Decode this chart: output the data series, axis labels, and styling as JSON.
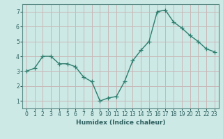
{
  "x": [
    0,
    1,
    2,
    3,
    4,
    5,
    6,
    7,
    8,
    9,
    10,
    11,
    12,
    13,
    14,
    15,
    16,
    17,
    18,
    19,
    20,
    21,
    22,
    23
  ],
  "y": [
    3.0,
    3.2,
    4.0,
    4.0,
    3.5,
    3.5,
    3.3,
    2.6,
    2.3,
    1.0,
    1.2,
    1.3,
    2.3,
    3.7,
    4.4,
    5.0,
    7.0,
    7.1,
    6.3,
    5.9,
    5.4,
    5.0,
    4.5,
    4.3
  ],
  "line_color": "#2e7d6e",
  "marker": "+",
  "marker_size": 4,
  "linewidth": 1.0,
  "bg_color": "#cce9e5",
  "grid_color": "#c8b8b8",
  "xlabel": "Humidex (Indice chaleur)",
  "ylabel": "",
  "xlim": [
    -0.5,
    23.5
  ],
  "ylim": [
    0.5,
    7.5
  ],
  "yticks": [
    1,
    2,
    3,
    4,
    5,
    6,
    7
  ],
  "xticks": [
    0,
    1,
    2,
    3,
    4,
    5,
    6,
    7,
    8,
    9,
    10,
    11,
    12,
    13,
    14,
    15,
    16,
    17,
    18,
    19,
    20,
    21,
    22,
    23
  ],
  "tick_label_fontsize": 5.5,
  "xlabel_fontsize": 6.5,
  "tick_color": "#2e5f5f",
  "label_color": "#2e5f5f",
  "spine_color": "#5a8a85"
}
